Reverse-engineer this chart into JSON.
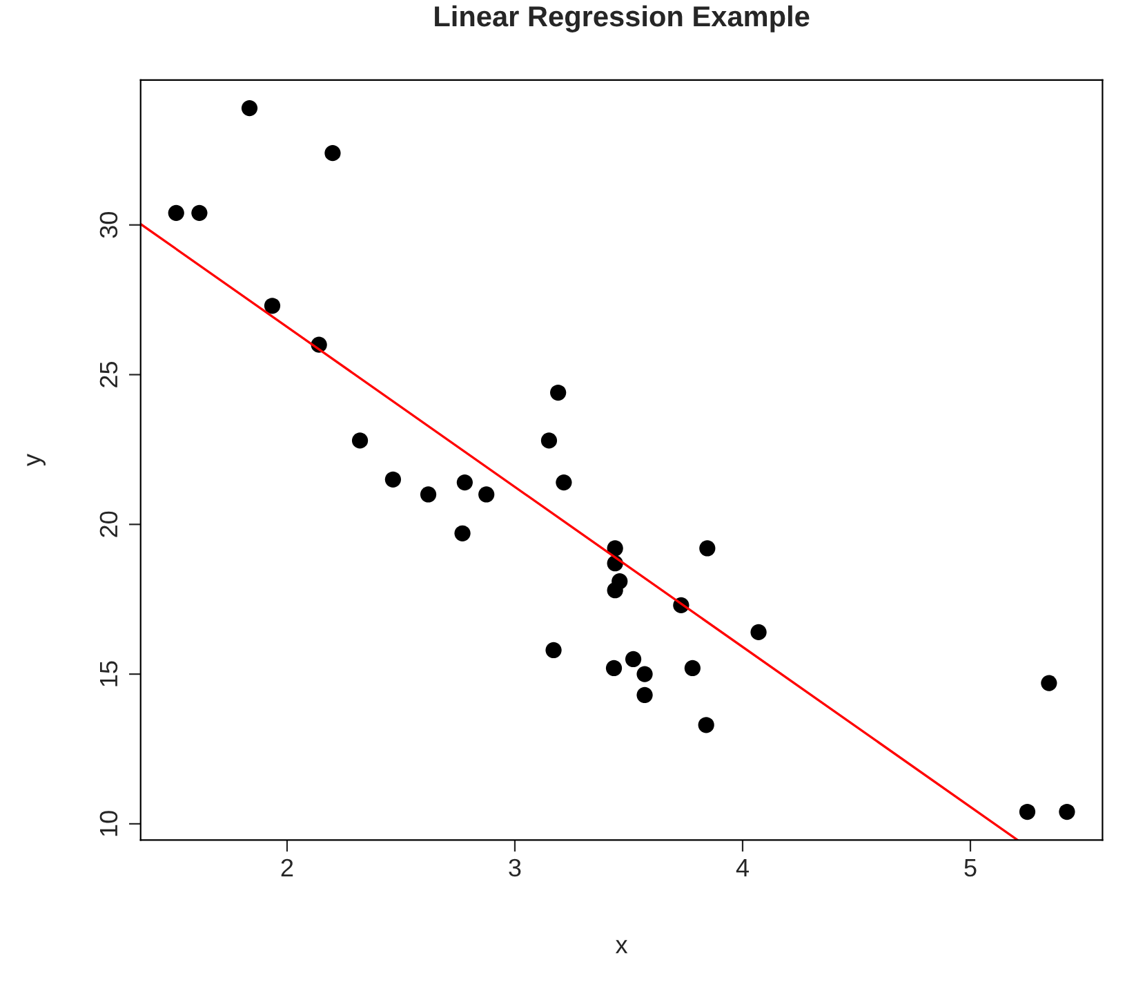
{
  "chart_data": {
    "type": "scatter",
    "title": "Linear Regression Example",
    "xlabel": "x",
    "ylabel": "y",
    "xlim": [
      1.357,
      5.58
    ],
    "ylim": [
      9.46,
      34.84
    ],
    "xticks": [
      2,
      3,
      4,
      5
    ],
    "yticks": [
      10,
      15,
      20,
      25,
      30
    ],
    "grid": false,
    "legend": false,
    "series": [
      {
        "marker": "circle",
        "color": "#000000",
        "x": [
          2.62,
          2.875,
          2.32,
          3.215,
          3.44,
          3.46,
          3.57,
          3.19,
          3.15,
          3.44,
          3.44,
          4.07,
          3.73,
          3.78,
          5.25,
          5.424,
          5.345,
          2.2,
          1.615,
          1.835,
          2.465,
          3.52,
          3.435,
          3.84,
          3.845,
          1.935,
          2.14,
          1.513,
          3.17,
          2.77,
          3.57,
          2.78
        ],
        "values": [
          21.0,
          21.0,
          22.8,
          21.4,
          18.7,
          18.1,
          14.3,
          24.4,
          22.8,
          19.2,
          17.8,
          16.4,
          17.3,
          15.2,
          10.4,
          10.4,
          14.7,
          32.4,
          30.4,
          33.9,
          21.5,
          15.5,
          15.2,
          13.3,
          19.2,
          27.3,
          26.0,
          30.4,
          15.8,
          19.7,
          15.0,
          21.4
        ]
      },
      {
        "type": "line",
        "marker": "none",
        "color": "#ff0000",
        "line_style": "solid",
        "x": [
          1.357,
          5.207
        ],
        "values": [
          30.03,
          9.46
        ]
      }
    ]
  }
}
